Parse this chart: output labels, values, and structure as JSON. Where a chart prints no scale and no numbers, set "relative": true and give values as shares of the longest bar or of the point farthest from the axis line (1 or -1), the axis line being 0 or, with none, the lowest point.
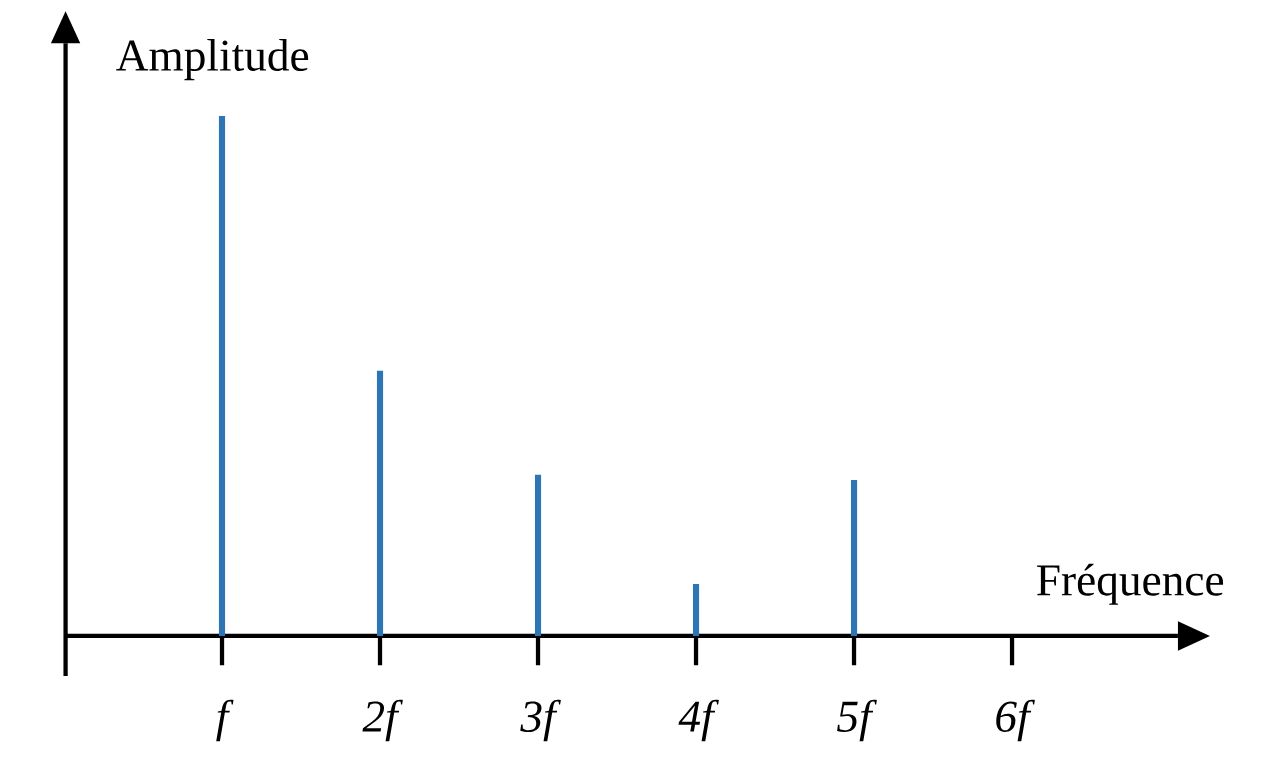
{
  "chart_data": {
    "type": "bar",
    "relative": true,
    "xlabel": "Fréquence",
    "ylabel": "Amplitude",
    "categories": [
      "f",
      "2f",
      "3f",
      "4f",
      "5f",
      "6f"
    ],
    "values": [
      1,
      0.51,
      0.31,
      0.1,
      0.3,
      null
    ],
    "color": "#2e75b6"
  }
}
